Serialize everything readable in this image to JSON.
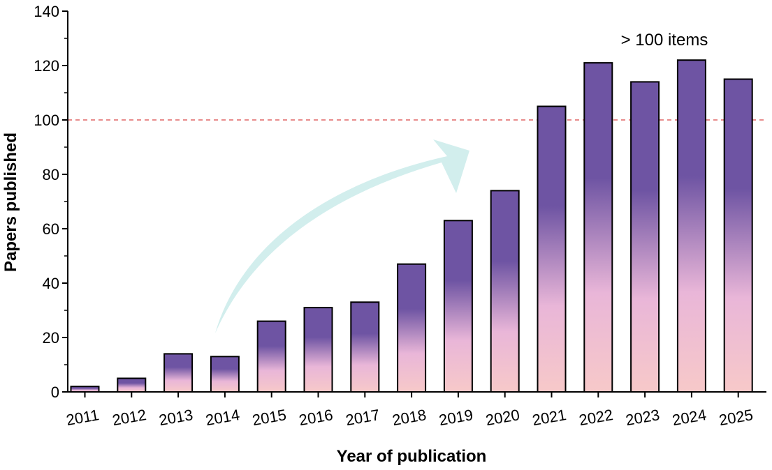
{
  "chart_data": {
    "type": "bar",
    "title": "",
    "xlabel": "Year of publication",
    "ylabel": "Papers published",
    "ylim": [
      0,
      140
    ],
    "yticks": [
      0,
      20,
      40,
      60,
      80,
      100,
      120,
      140
    ],
    "categories": [
      "2011",
      "2012",
      "2013",
      "2014",
      "2015",
      "2016",
      "2017",
      "2018",
      "2019",
      "2020",
      "2021",
      "2022",
      "2023",
      "2024",
      "2025"
    ],
    "values": [
      2,
      5,
      14,
      13,
      26,
      31,
      33,
      47,
      63,
      74,
      105,
      121,
      114,
      122,
      115
    ],
    "reference_line": {
      "value": 100,
      "color": "#e06666"
    },
    "annotation": "> 100 items",
    "colors": {
      "bar_top": "#6e54a3",
      "bar_mid": "#e9b6d8",
      "bar_bottom": "#f7c9c9",
      "bar_stroke": "#000000",
      "arrow": "#cdeceb"
    }
  }
}
